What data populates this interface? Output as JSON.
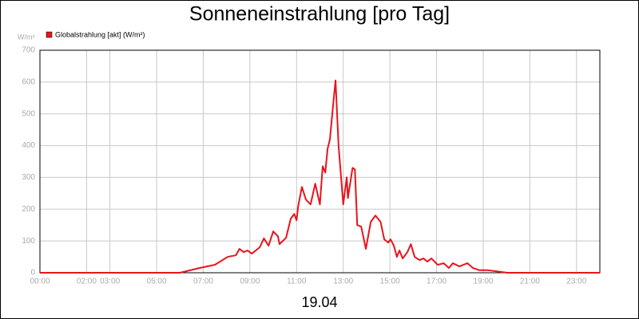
{
  "chart_data": {
    "type": "line",
    "title": "Sonneneinstrahlung [pro Tag]",
    "y_unit": "W/m²",
    "date_label": "19.04",
    "x": [
      0,
      6.0,
      6.85,
      7.5,
      8.05,
      8.4,
      8.55,
      8.73,
      8.9,
      9.08,
      9.42,
      9.6,
      9.8,
      10.0,
      10.2,
      10.27,
      10.55,
      10.75,
      10.9,
      11.0,
      11.07,
      11.23,
      11.4,
      11.6,
      11.8,
      12.0,
      12.12,
      12.23,
      12.33,
      12.43,
      12.57,
      12.67,
      12.8,
      13.0,
      13.15,
      13.2,
      13.4,
      13.5,
      13.6,
      13.77,
      13.97,
      14.18,
      14.38,
      14.6,
      14.76,
      14.93,
      15.03,
      15.17,
      15.3,
      15.41,
      15.55,
      15.75,
      15.9,
      16.06,
      16.27,
      16.44,
      16.6,
      16.78,
      17.05,
      17.3,
      17.53,
      17.7,
      17.98,
      18.32,
      18.56,
      18.84,
      19.18,
      19.52,
      20.03,
      24
    ],
    "series": [
      {
        "name": "Globalstrahlung [akt] (W/m²)",
        "color": "#e8141c",
        "values": [
          0,
          0,
          15,
          25,
          50,
          55,
          75,
          65,
          70,
          60,
          80,
          108,
          85,
          130,
          115,
          90,
          110,
          170,
          185,
          165,
          210,
          270,
          230,
          215,
          280,
          215,
          335,
          315,
          390,
          420,
          530,
          605,
          400,
          215,
          300,
          235,
          330,
          325,
          150,
          145,
          75,
          160,
          180,
          160,
          105,
          95,
          105,
          85,
          50,
          70,
          45,
          65,
          90,
          50,
          40,
          45,
          35,
          45,
          25,
          30,
          15,
          30,
          20,
          30,
          15,
          8,
          8,
          5,
          0,
          0
        ]
      }
    ],
    "xlim": [
      0,
      24
    ],
    "xticks": [
      {
        "value": 0,
        "label": "00:00"
      },
      {
        "value": 2,
        "label": "02:00"
      },
      {
        "value": 3,
        "label": "03:00"
      },
      {
        "value": 5,
        "label": "05:00"
      },
      {
        "value": 7,
        "label": "07:00"
      },
      {
        "value": 9,
        "label": "09:00"
      },
      {
        "value": 11,
        "label": "11:00"
      },
      {
        "value": 13,
        "label": "13:00"
      },
      {
        "value": 15,
        "label": "15:00"
      },
      {
        "value": 17,
        "label": "17:00"
      },
      {
        "value": 19,
        "label": "19:00"
      },
      {
        "value": 21,
        "label": "21:00"
      },
      {
        "value": 23,
        "label": "23:00"
      }
    ],
    "ylim": [
      0,
      700
    ],
    "yticks": [
      0,
      100,
      200,
      300,
      400,
      500,
      600,
      700
    ],
    "grid": true
  }
}
